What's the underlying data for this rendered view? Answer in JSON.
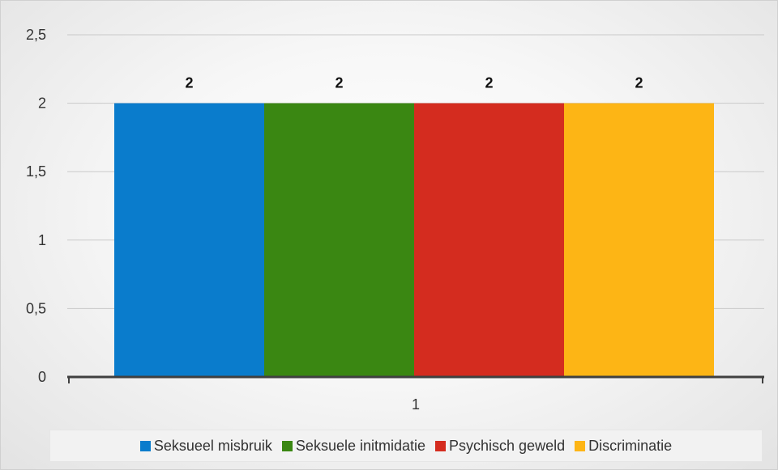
{
  "chart_data": {
    "type": "bar",
    "categories": [
      "1"
    ],
    "series": [
      {
        "name": "Seksueel misbruik",
        "values": [
          2
        ],
        "color": "#0a7ccc"
      },
      {
        "name": "Seksuele initmidatie",
        "values": [
          2
        ],
        "color": "#3a8712"
      },
      {
        "name": "Psychisch geweld",
        "values": [
          2
        ],
        "color": "#d42c1f"
      },
      {
        "name": "Discriminatie",
        "values": [
          2
        ],
        "color": "#fdb515"
      }
    ],
    "data_labels": [
      "2",
      "2",
      "2",
      "2"
    ],
    "y_ticks": [
      "0",
      "0,5",
      "1",
      "1,5",
      "2",
      "2,5"
    ],
    "ylim": [
      0,
      2.5
    ],
    "title": "",
    "xlabel": "",
    "ylabel": "",
    "grid": true,
    "legend_position": "bottom"
  }
}
